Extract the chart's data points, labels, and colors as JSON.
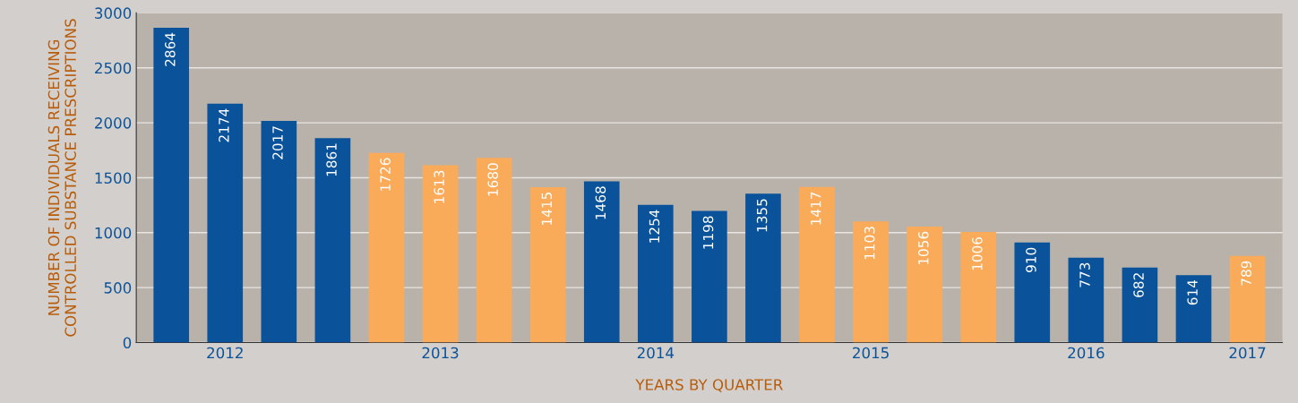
{
  "chart_data": {
    "type": "bar",
    "categories": [
      null,
      "2012",
      null,
      null,
      null,
      "2013",
      null,
      null,
      null,
      "2014",
      null,
      null,
      null,
      "2015",
      null,
      null,
      null,
      "2016",
      null,
      null,
      "2017"
    ],
    "values": [
      2864,
      2174,
      2017,
      1861,
      1726,
      1613,
      1680,
      1415,
      1468,
      1254,
      1198,
      1355,
      1417,
      1103,
      1056,
      1006,
      910,
      773,
      682,
      614,
      789
    ],
    "colors": [
      "#0a5299",
      "#0a5299",
      "#0a5299",
      "#0a5299",
      "#f9ab5a",
      "#f9ab5a",
      "#f9ab5a",
      "#f9ab5a",
      "#0a5299",
      "#0a5299",
      "#0a5299",
      "#0a5299",
      "#f9ab5a",
      "#f9ab5a",
      "#f9ab5a",
      "#f9ab5a",
      "#0a5299",
      "#0a5299",
      "#0a5299",
      "#0a5299",
      "#f9ab5a"
    ],
    "xlabel": "YEARS BY QUARTER",
    "ylabel": "NUMBER OF INDIVIDUALS RECEIVING\nCONTROLLED SUBSTANCE PRESCRIPTIONS",
    "ylim": [
      0,
      3000
    ],
    "yticks": [
      0,
      500,
      1000,
      1500,
      2000,
      2500,
      3000
    ],
    "grid": "y",
    "data_labels": true
  }
}
